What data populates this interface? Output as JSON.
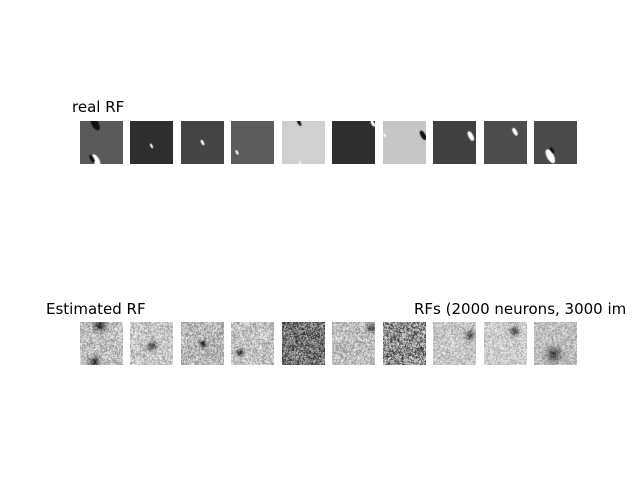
{
  "panels": {
    "real": {
      "title": "real RF",
      "tiles": [
        {
          "bg": "#5a5a5a",
          "blobs": [
            {
              "fx": 0.35,
              "fy": 0.06,
              "r": 0.18,
              "c": "#111111"
            },
            {
              "fx": 0.38,
              "fy": 0.92,
              "r": 0.16,
              "c": "#ffffff"
            },
            {
              "fx": 0.28,
              "fy": 0.88,
              "r": 0.1,
              "c": "#111111"
            }
          ]
        },
        {
          "bg": "#2e2e2e",
          "blobs": [
            {
              "fx": 0.5,
              "fy": 0.58,
              "r": 0.06,
              "c": "#ffffff"
            }
          ]
        },
        {
          "bg": "#444444",
          "blobs": [
            {
              "fx": 0.5,
              "fy": 0.5,
              "r": 0.07,
              "c": "#ffffff"
            }
          ]
        },
        {
          "bg": "#5c5c5c",
          "blobs": [
            {
              "fx": 0.14,
              "fy": 0.73,
              "r": 0.06,
              "c": "#ffffff"
            }
          ]
        },
        {
          "bg": "#d0d0d0",
          "blobs": [
            {
              "fx": 0.4,
              "fy": 0.04,
              "r": 0.08,
              "c": "#111111"
            },
            {
              "fx": 0.42,
              "fy": 0.98,
              "r": 0.05,
              "c": "#ffffff"
            }
          ]
        },
        {
          "bg": "#2e2e2e",
          "blobs": [
            {
              "fx": 0.95,
              "fy": 0.06,
              "r": 0.08,
              "c": "#ffffff"
            }
          ]
        },
        {
          "bg": "#c6c6c6",
          "blobs": [
            {
              "fx": 0.93,
              "fy": 0.33,
              "r": 0.12,
              "c": "#111111"
            },
            {
              "fx": 0.04,
              "fy": 0.33,
              "r": 0.05,
              "c": "#ffffff"
            }
          ]
        },
        {
          "bg": "#414141",
          "blobs": [
            {
              "fx": 0.88,
              "fy": 0.35,
              "r": 0.12,
              "c": "#ffffff"
            }
          ]
        },
        {
          "bg": "#4c4c4c",
          "blobs": [
            {
              "fx": 0.72,
              "fy": 0.25,
              "r": 0.1,
              "c": "#ffffff"
            }
          ]
        },
        {
          "bg": "#4a4a4a",
          "blobs": [
            {
              "fx": 0.38,
              "fy": 0.82,
              "r": 0.18,
              "c": "#ffffff"
            },
            {
              "fx": 0.42,
              "fy": 0.68,
              "r": 0.08,
              "c": "#111111"
            }
          ]
        }
      ]
    },
    "estimated": {
      "title": "Estimated RF",
      "side_title": "RFs (2000 neurons, 3000 im",
      "tiles": [
        {
          "base": 0.75,
          "noise": 0.45,
          "seed": 11,
          "blobs": [
            {
              "fx": 0.45,
              "fy": 0.08,
              "r": 0.16,
              "d": -0.55
            },
            {
              "fx": 0.32,
              "fy": 0.92,
              "r": 0.14,
              "d": -0.55
            }
          ]
        },
        {
          "base": 0.78,
          "noise": 0.42,
          "seed": 23,
          "blobs": [
            {
              "fx": 0.5,
              "fy": 0.55,
              "r": 0.12,
              "d": -0.55
            }
          ]
        },
        {
          "base": 0.72,
          "noise": 0.45,
          "seed": 37,
          "blobs": [
            {
              "fx": 0.5,
              "fy": 0.5,
              "r": 0.1,
              "d": -0.55
            }
          ]
        },
        {
          "base": 0.76,
          "noise": 0.42,
          "seed": 41,
          "blobs": [
            {
              "fx": 0.2,
              "fy": 0.7,
              "r": 0.1,
              "d": -0.6
            }
          ]
        },
        {
          "base": 0.45,
          "noise": 0.7,
          "seed": 53,
          "blobs": []
        },
        {
          "base": 0.75,
          "noise": 0.42,
          "seed": 67,
          "blobs": [
            {
              "fx": 0.9,
              "fy": 0.12,
              "r": 0.12,
              "d": -0.45
            }
          ]
        },
        {
          "base": 0.55,
          "noise": 0.8,
          "seed": 71,
          "blobs": []
        },
        {
          "base": 0.78,
          "noise": 0.35,
          "seed": 83,
          "blobs": [
            {
              "fx": 0.85,
              "fy": 0.3,
              "r": 0.14,
              "d": -0.45
            }
          ]
        },
        {
          "base": 0.8,
          "noise": 0.35,
          "seed": 97,
          "blobs": [
            {
              "fx": 0.7,
              "fy": 0.2,
              "r": 0.13,
              "d": -0.5
            }
          ]
        },
        {
          "base": 0.75,
          "noise": 0.35,
          "seed": 101,
          "blobs": [
            {
              "fx": 0.45,
              "fy": 0.75,
              "r": 0.2,
              "d": -0.45
            }
          ]
        }
      ]
    }
  }
}
